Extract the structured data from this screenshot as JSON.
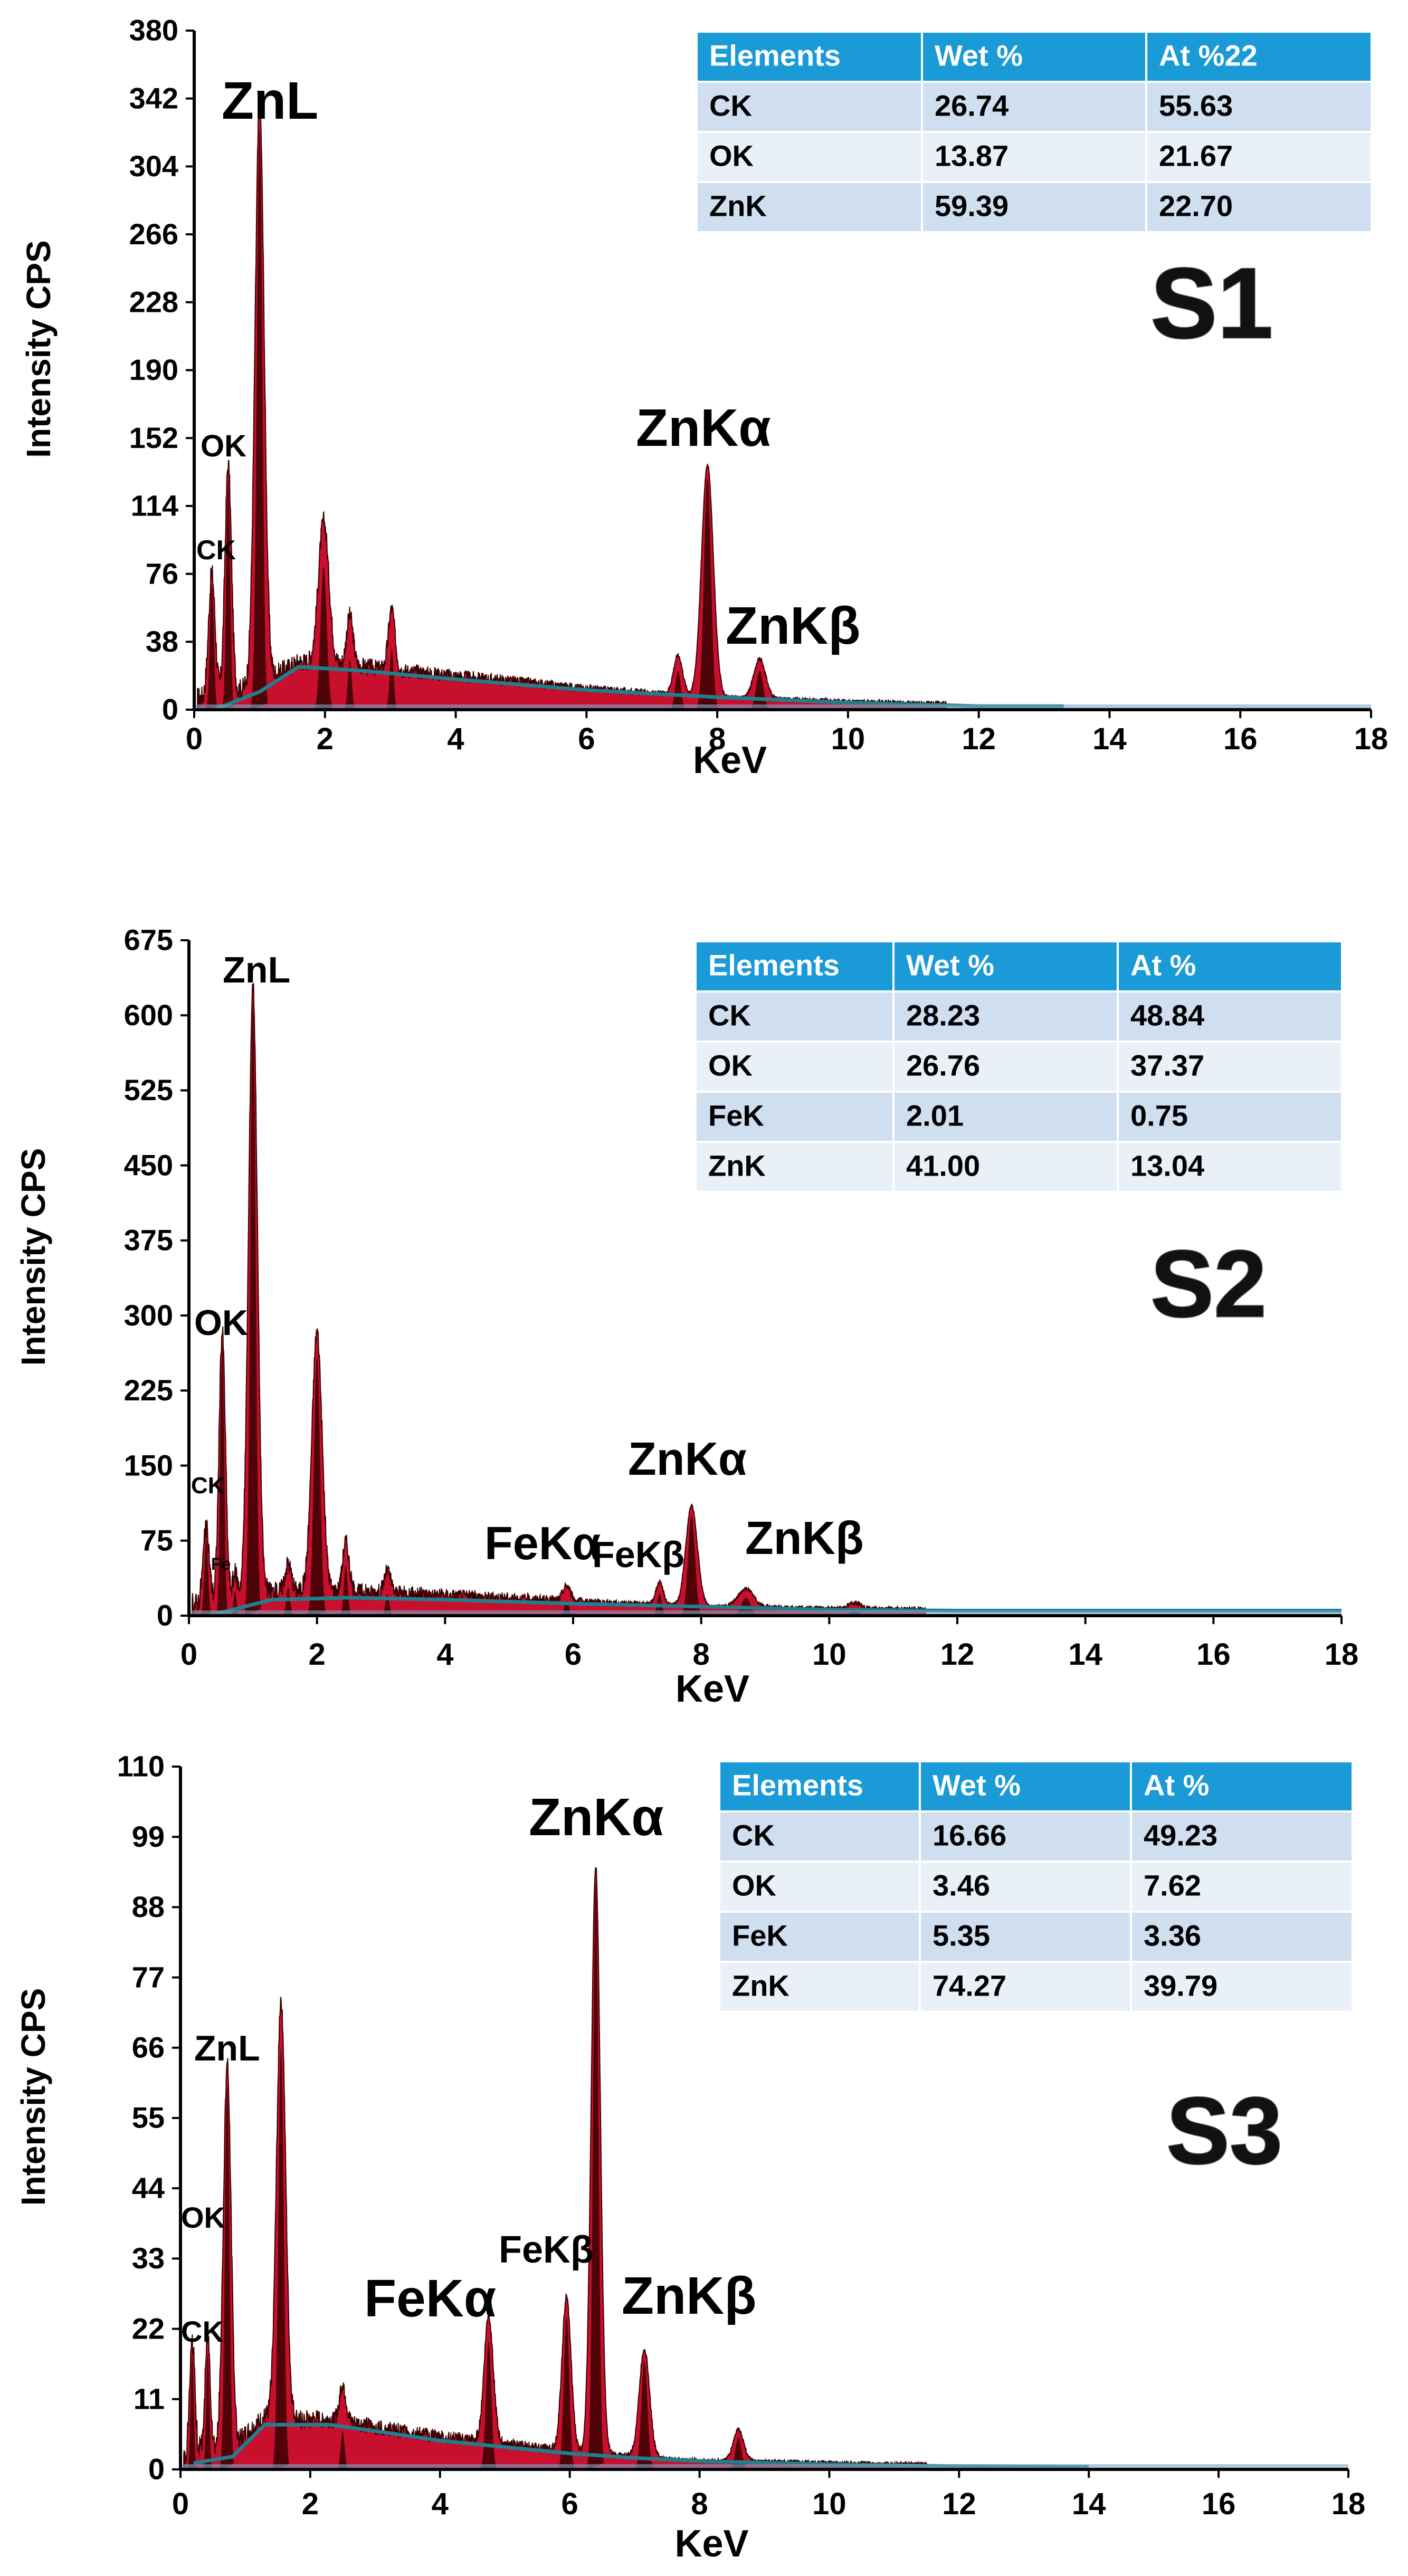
{
  "colors": {
    "spectrum_fill": "#c8102e",
    "spectrum_dark": "#3a0000",
    "background_curve": "#1f7f8c",
    "table_header": "#1a9ad6",
    "table_row_a": "#cfdff0",
    "table_row_b": "#e9f0f8",
    "axis": "#000000"
  },
  "chart_data": [
    {
      "type": "area",
      "badge": "S1",
      "xlabel": "KeV",
      "ylabel": "Intensity CPS",
      "xlim": [
        0,
        18
      ],
      "ylim": [
        0,
        380
      ],
      "x_ticks": [
        0,
        2,
        4,
        6,
        8,
        10,
        12,
        14,
        16,
        18
      ],
      "y_ticks": [
        0,
        38,
        76,
        114,
        152,
        190,
        228,
        266,
        304,
        342,
        380
      ],
      "peaks": [
        {
          "x": 0.27,
          "y": 70,
          "w": 0.05,
          "label": "CK"
        },
        {
          "x": 0.52,
          "y": 128,
          "w": 0.05,
          "label": "OK"
        },
        {
          "x": 1.0,
          "y": 325,
          "w": 0.07,
          "label": "ZnL"
        },
        {
          "x": 1.98,
          "y": 80,
          "w": 0.08
        },
        {
          "x": 2.38,
          "y": 28,
          "w": 0.05
        },
        {
          "x": 3.02,
          "y": 34,
          "w": 0.05
        },
        {
          "x": 7.4,
          "y": 22,
          "w": 0.07
        },
        {
          "x": 7.85,
          "y": 130,
          "w": 0.09,
          "label": "ZnKα"
        },
        {
          "x": 8.65,
          "y": 22,
          "w": 0.09,
          "label": "ZnKβ"
        }
      ],
      "background_curve": [
        [
          0.3,
          0
        ],
        [
          1,
          10
        ],
        [
          1.6,
          24
        ],
        [
          2.5,
          22
        ],
        [
          4,
          17
        ],
        [
          6,
          11
        ],
        [
          8,
          7
        ],
        [
          10,
          4
        ],
        [
          12,
          2
        ],
        [
          13.3,
          2
        ]
      ],
      "table": {
        "headers": [
          "Elements",
          "Wet %",
          "At %22"
        ],
        "rows": [
          [
            "CK",
            "26.74",
            "55.63"
          ],
          [
            "OK",
            "13.87",
            "21.67"
          ],
          [
            "ZnK",
            "59.39",
            "22.70"
          ]
        ]
      }
    },
    {
      "type": "area",
      "badge": "S2",
      "xlabel": "KeV",
      "ylabel": "Intensity CPS",
      "xlim": [
        0,
        18
      ],
      "ylim": [
        0,
        675
      ],
      "x_ticks": [
        0,
        2,
        4,
        6,
        8,
        10,
        12,
        14,
        16,
        18
      ],
      "y_ticks": [
        0,
        75,
        150,
        225,
        300,
        375,
        450,
        525,
        600,
        675
      ],
      "peaks": [
        {
          "x": 0.27,
          "y": 75,
          "w": 0.05,
          "label": "CK"
        },
        {
          "x": 0.52,
          "y": 270,
          "w": 0.05,
          "label": "OK"
        },
        {
          "x": 0.72,
          "y": 25,
          "w": 0.04,
          "label": "Fe"
        },
        {
          "x": 1.0,
          "y": 610,
          "w": 0.07,
          "label": "ZnL"
        },
        {
          "x": 1.55,
          "y": 28,
          "w": 0.05
        },
        {
          "x": 2.0,
          "y": 260,
          "w": 0.08
        },
        {
          "x": 2.45,
          "y": 50,
          "w": 0.05
        },
        {
          "x": 3.1,
          "y": 22,
          "w": 0.05
        },
        {
          "x": 5.9,
          "y": 15,
          "w": 0.06,
          "label": "FeKα"
        },
        {
          "x": 7.35,
          "y": 22,
          "w": 0.06,
          "label": "FeKβ"
        },
        {
          "x": 7.85,
          "y": 100,
          "w": 0.09,
          "label": "ZnKα"
        },
        {
          "x": 8.7,
          "y": 18,
          "w": 0.12,
          "label": "ZnKβ"
        },
        {
          "x": 10.4,
          "y": 6,
          "w": 0.1
        }
      ],
      "background_curve": [
        [
          0.3,
          0
        ],
        [
          1.3,
          16
        ],
        [
          2.5,
          18
        ],
        [
          4,
          16
        ],
        [
          6,
          12
        ],
        [
          8,
          9
        ],
        [
          10,
          6
        ],
        [
          12,
          5
        ],
        [
          14,
          5
        ],
        [
          18,
          5
        ]
      ],
      "table": {
        "headers": [
          "Elements",
          "Wet %",
          "At %"
        ],
        "rows": [
          [
            "CK",
            "28.23",
            "48.84"
          ],
          [
            "OK",
            "26.76",
            "37.37"
          ],
          [
            "FeK",
            "2.01",
            "0.75"
          ],
          [
            "ZnK",
            "41.00",
            "13.04"
          ]
        ]
      }
    },
    {
      "type": "area",
      "badge": "S3",
      "xlabel": "KeV",
      "ylabel": "Intensity CPS",
      "xlim": [
        0,
        18
      ],
      "ylim": [
        0,
        110
      ],
      "x_ticks": [
        0,
        2,
        4,
        6,
        8,
        10,
        12,
        14,
        16,
        18
      ],
      "y_ticks": [
        0,
        11,
        22,
        33,
        44,
        55,
        66,
        77,
        88,
        99,
        110
      ],
      "peaks": [
        {
          "x": 0.18,
          "y": 18,
          "w": 0.04,
          "label": "CK"
        },
        {
          "x": 0.42,
          "y": 18,
          "w": 0.04,
          "label": "OK"
        },
        {
          "x": 0.72,
          "y": 60,
          "w": 0.06,
          "label": "ZnL"
        },
        {
          "x": 1.55,
          "y": 66,
          "w": 0.07
        },
        {
          "x": 2.5,
          "y": 6,
          "w": 0.05
        },
        {
          "x": 4.75,
          "y": 20,
          "w": 0.07,
          "label": "FeKα"
        },
        {
          "x": 5.95,
          "y": 24,
          "w": 0.07,
          "label": "FeKβ"
        },
        {
          "x": 6.4,
          "y": 92,
          "w": 0.07,
          "label": "ZnKα"
        },
        {
          "x": 7.15,
          "y": 17,
          "w": 0.08,
          "label": "ZnKβ"
        },
        {
          "x": 8.6,
          "y": 5,
          "w": 0.08
        }
      ],
      "background_curve": [
        [
          0.2,
          1
        ],
        [
          0.8,
          2
        ],
        [
          1.3,
          7
        ],
        [
          2.3,
          7
        ],
        [
          3,
          6
        ],
        [
          4,
          4.5
        ],
        [
          5,
          3.5
        ],
        [
          6,
          2.5
        ],
        [
          7,
          1.8
        ],
        [
          8,
          1.3
        ],
        [
          10,
          0.8
        ],
        [
          12,
          0.5
        ],
        [
          14,
          0.4
        ]
      ],
      "table": {
        "headers": [
          "Elements",
          "Wet %",
          "At %"
        ],
        "rows": [
          [
            "CK",
            "16.66",
            "49.23"
          ],
          [
            "OK",
            "3.46",
            "7.62"
          ],
          [
            "FeK",
            "5.35",
            "3.36"
          ],
          [
            "ZnK",
            "74.27",
            "39.79"
          ]
        ]
      }
    }
  ]
}
